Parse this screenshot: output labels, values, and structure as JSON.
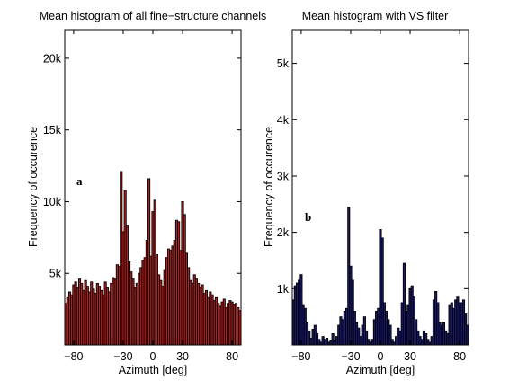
{
  "chart_data": [
    {
      "type": "bar",
      "panel_label": "a",
      "title": "Mean histogram of all fine−structure channels",
      "xlabel": "Azimuth [deg]",
      "ylabel": "Frequency of occurence",
      "xlim": [
        -89,
        89
      ],
      "ylim": [
        0,
        22000
      ],
      "xticks": [
        -80,
        -30,
        0,
        30,
        80
      ],
      "xtick_labels": [
        "−80",
        "−30",
        "0",
        "30",
        "80"
      ],
      "yticks": [
        5000,
        10000,
        15000,
        20000
      ],
      "ytick_labels": [
        "5k",
        "10k",
        "15k",
        "20k"
      ],
      "bin_width": 2,
      "bar_color": "#b22222",
      "x": [
        -88,
        -86,
        -84,
        -82,
        -80,
        -78,
        -76,
        -74,
        -72,
        -70,
        -68,
        -66,
        -64,
        -62,
        -60,
        -58,
        -56,
        -54,
        -52,
        -50,
        -48,
        -46,
        -44,
        -42,
        -40,
        -38,
        -36,
        -34,
        -32,
        -30,
        -28,
        -26,
        -24,
        -22,
        -20,
        -18,
        -16,
        -14,
        -12,
        -10,
        -8,
        -6,
        -4,
        -2,
        0,
        2,
        4,
        6,
        8,
        10,
        12,
        14,
        16,
        18,
        20,
        22,
        24,
        26,
        28,
        30,
        32,
        34,
        36,
        38,
        40,
        42,
        44,
        46,
        48,
        50,
        52,
        54,
        56,
        58,
        60,
        62,
        64,
        66,
        68,
        70,
        72,
        74,
        76,
        78,
        80,
        82,
        84,
        86,
        88
      ],
      "values": [
        2900,
        3300,
        3700,
        3500,
        4200,
        4400,
        4000,
        4600,
        4300,
        3800,
        4500,
        4100,
        3700,
        4400,
        3900,
        3600,
        4300,
        4100,
        3800,
        3500,
        4400,
        4000,
        3700,
        4300,
        4700,
        4600,
        5600,
        5500,
        12100,
        7900,
        10800,
        8300,
        5800,
        5100,
        4600,
        4000,
        4300,
        5000,
        5400,
        5900,
        6100,
        7300,
        11600,
        6200,
        9300,
        10100,
        6300,
        4900,
        4500,
        4100,
        5200,
        6100,
        6700,
        6600,
        6900,
        7300,
        8700,
        8600,
        6600,
        10000,
        9100,
        6400,
        5400,
        4500,
        4300,
        4900,
        4600,
        4300,
        4000,
        4200,
        3600,
        3800,
        3300,
        3700,
        3500,
        3100,
        3300,
        2900,
        2700,
        3000,
        3200,
        2600,
        2900,
        3100,
        3000,
        2800,
        2900,
        2600,
        2400
      ]
    },
    {
      "type": "bar",
      "panel_label": "b",
      "title": "Mean histogram with VS filter",
      "xlabel": "Azimuth [deg]",
      "ylabel": "Frequency of occurence",
      "xlim": [
        -89,
        89
      ],
      "ylim": [
        0,
        5600
      ],
      "xticks": [
        -80,
        -30,
        0,
        30,
        80
      ],
      "xtick_labels": [
        "−80",
        "−30",
        "0",
        "30",
        "80"
      ],
      "yticks": [
        1000,
        2000,
        3000,
        4000,
        5000
      ],
      "ytick_labels": [
        "1k",
        "2k",
        "3k",
        "4k",
        "5k"
      ],
      "bin_width": 2,
      "bar_color": "#1a1a6e",
      "x": [
        -88,
        -86,
        -84,
        -82,
        -80,
        -78,
        -76,
        -74,
        -72,
        -70,
        -68,
        -66,
        -64,
        -62,
        -60,
        -58,
        -56,
        -54,
        -52,
        -50,
        -48,
        -46,
        -44,
        -42,
        -40,
        -38,
        -36,
        -34,
        -32,
        -30,
        -28,
        -26,
        -24,
        -22,
        -20,
        -18,
        -16,
        -14,
        -12,
        -10,
        -8,
        -6,
        -4,
        -2,
        0,
        2,
        4,
        6,
        8,
        10,
        12,
        14,
        16,
        18,
        20,
        22,
        24,
        26,
        28,
        30,
        32,
        34,
        36,
        38,
        40,
        42,
        44,
        46,
        48,
        50,
        52,
        54,
        56,
        58,
        60,
        62,
        64,
        66,
        68,
        70,
        72,
        74,
        76,
        78,
        80,
        82,
        84,
        86,
        88
      ],
      "values": [
        800,
        1050,
        1100,
        1150,
        1250,
        700,
        650,
        400,
        250,
        120,
        280,
        350,
        200,
        100,
        50,
        150,
        100,
        120,
        50,
        80,
        200,
        80,
        150,
        350,
        500,
        450,
        600,
        650,
        2450,
        1400,
        1150,
        600,
        400,
        300,
        150,
        350,
        500,
        250,
        100,
        50,
        100,
        450,
        600,
        650,
        2050,
        1900,
        750,
        600,
        450,
        350,
        100,
        50,
        150,
        300,
        250,
        750,
        1450,
        600,
        700,
        1000,
        1050,
        850,
        450,
        250,
        150,
        100,
        250,
        200,
        100,
        50,
        150,
        800,
        950,
        750,
        400,
        350,
        400,
        250,
        200,
        700,
        750,
        650,
        800,
        850,
        750,
        750,
        800,
        550,
        350
      ]
    }
  ]
}
